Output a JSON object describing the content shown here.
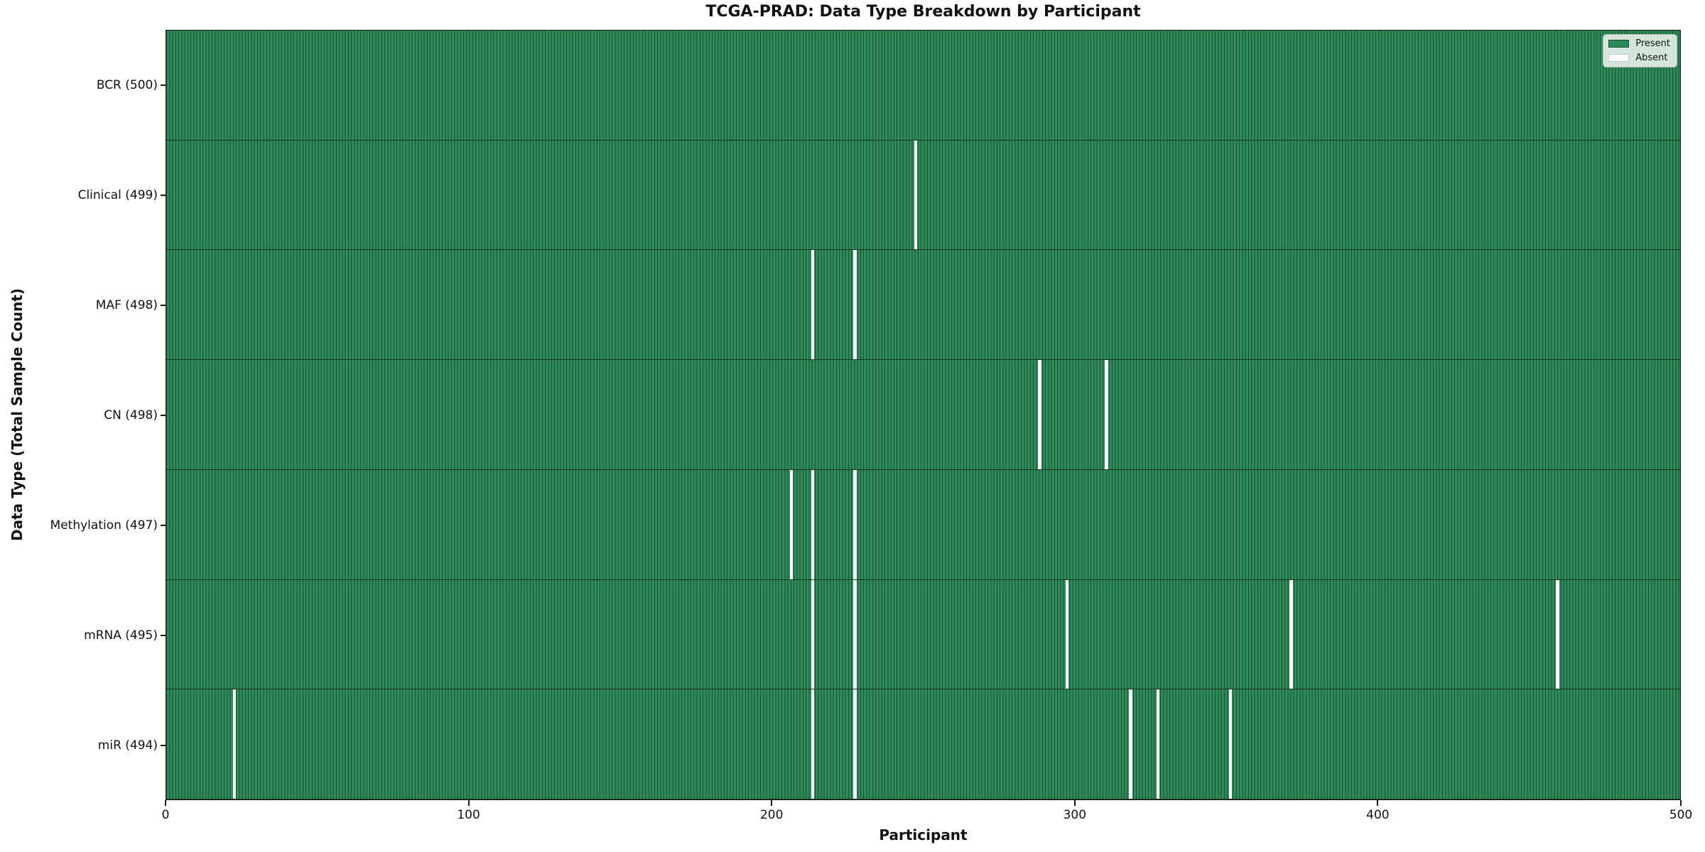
{
  "chart_data": {
    "type": "heatmap",
    "title": "TCGA-PRAD: Data Type Breakdown by Participant",
    "xlabel": "Participant",
    "ylabel": "Data Type (Total Sample Count)",
    "xlim": [
      0,
      500
    ],
    "x_ticks": [
      0,
      100,
      200,
      300,
      400,
      500
    ],
    "n_participants": 500,
    "grid": false,
    "legend_position": "upper right",
    "legend": [
      {
        "label": "Present",
        "color": "#2e8b57"
      },
      {
        "label": "Absent",
        "color": "#ffffff"
      }
    ],
    "rows": [
      {
        "label": "BCR (500)",
        "data_type": "BCR",
        "total": 500,
        "absent_participants": []
      },
      {
        "label": "Clinical (499)",
        "data_type": "Clinical",
        "total": 499,
        "absent_participants": [
          247
        ]
      },
      {
        "label": "MAF (498)",
        "data_type": "MAF",
        "total": 498,
        "absent_participants": [
          213,
          227
        ]
      },
      {
        "label": "CN (498)",
        "data_type": "CN",
        "total": 498,
        "absent_participants": [
          288,
          310
        ]
      },
      {
        "label": "Methylation (497)",
        "data_type": "Methylation",
        "total": 497,
        "absent_participants": [
          206,
          213,
          227
        ]
      },
      {
        "label": "mRNA (495)",
        "data_type": "mRNA",
        "total": 495,
        "absent_participants": [
          213,
          227,
          297,
          371,
          459
        ]
      },
      {
        "label": "miR (494)",
        "data_type": "miR",
        "total": 494,
        "absent_participants": [
          22,
          213,
          227,
          318,
          327,
          351
        ]
      }
    ],
    "colors": {
      "present": "#2e8b57",
      "absent": "#ffffff",
      "bar_edge": "#0e2e1d",
      "spine": "#1a1a1a"
    }
  }
}
